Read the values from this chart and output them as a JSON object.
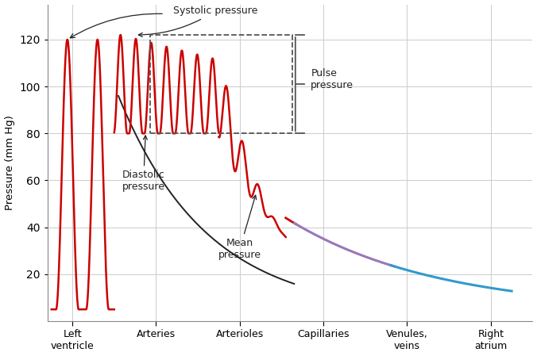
{
  "ylabel": "Pressure (mm Hg)",
  "ylim": [
    0,
    135
  ],
  "yticks": [
    20,
    40,
    60,
    80,
    100,
    120
  ],
  "x_labels": [
    "Left\nventricle",
    "Arteries",
    "Arterioles",
    "Capillaries",
    "Venules,\nveins",
    "Right\natrium"
  ],
  "x_positions": [
    0.5,
    2.5,
    4.5,
    6.5,
    8.5,
    10.5
  ],
  "background_color": "#ffffff",
  "grid_color": "#cccccc",
  "line_color_red": "#cc0000",
  "line_color_purple": "#9977bb",
  "line_color_blue": "#3399cc",
  "mean_line_color": "#222222",
  "box_color": "#555555",
  "annotation_color": "#222222"
}
